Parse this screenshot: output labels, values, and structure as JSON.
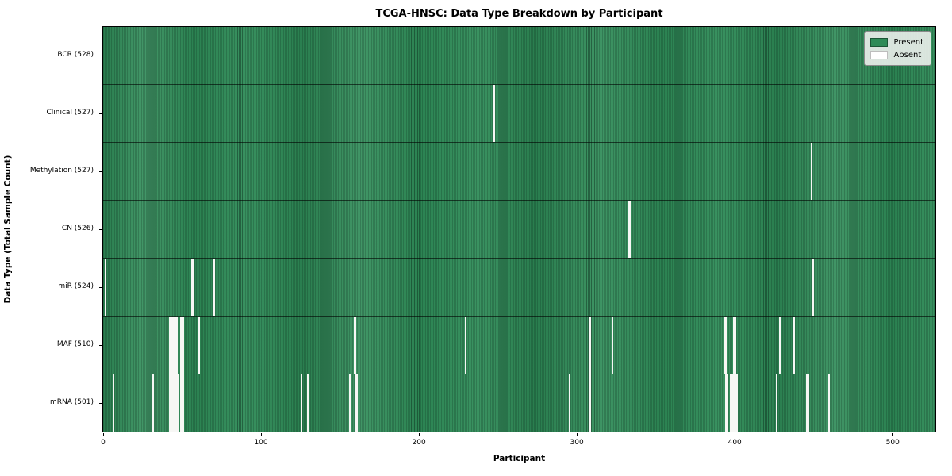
{
  "chart_data": {
    "type": "heatmap",
    "title": "TCGA-HNSC: Data Type Breakdown by Participant",
    "xlabel": "Participant",
    "ylabel": "Data Type (Total Sample Count)",
    "n_participants": 528,
    "x_ticks": [
      0,
      100,
      200,
      300,
      400,
      500
    ],
    "grid": false,
    "legend_position": "upper right",
    "colors": {
      "present": "#2e8b57",
      "absent": "#ffffff"
    },
    "legend_items": [
      {
        "label": "Present",
        "color": "#2e8b57"
      },
      {
        "label": "Absent",
        "color": "#ffffff"
      }
    ],
    "rows": [
      {
        "name": "BCR",
        "label": "BCR (528)",
        "total": 528,
        "absent_indices": []
      },
      {
        "name": "Clinical",
        "label": "Clinical (527)",
        "total": 527,
        "absent_indices": [
          247
        ]
      },
      {
        "name": "Methylation",
        "label": "Methylation (527)",
        "total": 527,
        "absent_indices": [
          448
        ]
      },
      {
        "name": "CN",
        "label": "CN (526)",
        "total": 526,
        "absent_indices": [
          332,
          333
        ]
      },
      {
        "name": "miR",
        "label": "miR (524)",
        "total": 524,
        "absent_indices": [
          1,
          56,
          70,
          449
        ]
      },
      {
        "name": "MAF",
        "label": "MAF (510)",
        "total": 510,
        "absent_indices": [
          42,
          43,
          44,
          45,
          46,
          49,
          50,
          60,
          159,
          229,
          308,
          322,
          393,
          394,
          399,
          400,
          428,
          437
        ]
      },
      {
        "name": "mRNA",
        "label": "mRNA (501)",
        "total": 501,
        "absent_indices": [
          6,
          31,
          42,
          43,
          44,
          45,
          46,
          47,
          49,
          50,
          125,
          129,
          156,
          160,
          295,
          308,
          394,
          395,
          397,
          398,
          399,
          400,
          401,
          426,
          445,
          446,
          459
        ]
      }
    ]
  }
}
